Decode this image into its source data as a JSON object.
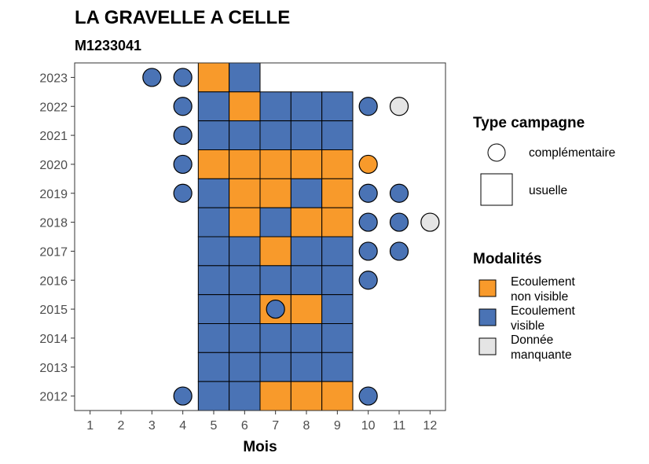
{
  "chart_data": {
    "type": "heatmap",
    "title": "LA GRAVELLE A CELLE",
    "subtitle": "M1233041",
    "xlabel": "Mois",
    "ylabel": "",
    "x_ticks": [
      "1",
      "2",
      "3",
      "4",
      "5",
      "6",
      "7",
      "8",
      "9",
      "10",
      "11",
      "12"
    ],
    "y_ticks": [
      "2012",
      "2013",
      "2014",
      "2015",
      "2016",
      "2017",
      "2018",
      "2019",
      "2020",
      "2021",
      "2022",
      "2023"
    ],
    "xlim": [
      0.5,
      12.5
    ],
    "ylim": [
      2011.5,
      2023.5
    ],
    "colors": {
      "Ecoulement non visible": "#F89A2B",
      "Ecoulement visible": "#4A73B5",
      "Donnée manquante": "#E5E5E5"
    },
    "legend_campaign": {
      "title": "Type campagne",
      "items": [
        {
          "shape": "circle",
          "label": "complémentaire"
        },
        {
          "shape": "square",
          "label": "usuelle"
        }
      ]
    },
    "legend_modalites": {
      "title": "Modalités",
      "items": [
        {
          "key": "Ecoulement non visible",
          "label_lines": [
            "Ecoulement",
            "non visible"
          ]
        },
        {
          "key": "Ecoulement visible",
          "label_lines": [
            "Ecoulement",
            "visible"
          ]
        },
        {
          "key": "Donnée manquante",
          "label_lines": [
            "Donnée",
            "manquante"
          ]
        }
      ]
    },
    "usuelle": [
      {
        "year": 2023,
        "month": 5,
        "value": "Ecoulement non visible"
      },
      {
        "year": 2023,
        "month": 6,
        "value": "Ecoulement visible"
      },
      {
        "year": 2022,
        "month": 5,
        "value": "Ecoulement visible"
      },
      {
        "year": 2022,
        "month": 6,
        "value": "Ecoulement non visible"
      },
      {
        "year": 2022,
        "month": 7,
        "value": "Ecoulement visible"
      },
      {
        "year": 2022,
        "month": 8,
        "value": "Ecoulement visible"
      },
      {
        "year": 2022,
        "month": 9,
        "value": "Ecoulement visible"
      },
      {
        "year": 2021,
        "month": 5,
        "value": "Ecoulement visible"
      },
      {
        "year": 2021,
        "month": 6,
        "value": "Ecoulement visible"
      },
      {
        "year": 2021,
        "month": 7,
        "value": "Ecoulement visible"
      },
      {
        "year": 2021,
        "month": 8,
        "value": "Ecoulement visible"
      },
      {
        "year": 2021,
        "month": 9,
        "value": "Ecoulement visible"
      },
      {
        "year": 2020,
        "month": 5,
        "value": "Ecoulement non visible"
      },
      {
        "year": 2020,
        "month": 6,
        "value": "Ecoulement non visible"
      },
      {
        "year": 2020,
        "month": 7,
        "value": "Ecoulement non visible"
      },
      {
        "year": 2020,
        "month": 8,
        "value": "Ecoulement non visible"
      },
      {
        "year": 2020,
        "month": 9,
        "value": "Ecoulement non visible"
      },
      {
        "year": 2019,
        "month": 5,
        "value": "Ecoulement visible"
      },
      {
        "year": 2019,
        "month": 6,
        "value": "Ecoulement non visible"
      },
      {
        "year": 2019,
        "month": 7,
        "value": "Ecoulement non visible"
      },
      {
        "year": 2019,
        "month": 8,
        "value": "Ecoulement visible"
      },
      {
        "year": 2019,
        "month": 9,
        "value": "Ecoulement non visible"
      },
      {
        "year": 2018,
        "month": 5,
        "value": "Ecoulement visible"
      },
      {
        "year": 2018,
        "month": 6,
        "value": "Ecoulement non visible"
      },
      {
        "year": 2018,
        "month": 7,
        "value": "Ecoulement visible"
      },
      {
        "year": 2018,
        "month": 8,
        "value": "Ecoulement non visible"
      },
      {
        "year": 2018,
        "month": 9,
        "value": "Ecoulement non visible"
      },
      {
        "year": 2017,
        "month": 5,
        "value": "Ecoulement visible"
      },
      {
        "year": 2017,
        "month": 6,
        "value": "Ecoulement visible"
      },
      {
        "year": 2017,
        "month": 7,
        "value": "Ecoulement non visible"
      },
      {
        "year": 2017,
        "month": 8,
        "value": "Ecoulement visible"
      },
      {
        "year": 2017,
        "month": 9,
        "value": "Ecoulement visible"
      },
      {
        "year": 2016,
        "month": 5,
        "value": "Ecoulement visible"
      },
      {
        "year": 2016,
        "month": 6,
        "value": "Ecoulement visible"
      },
      {
        "year": 2016,
        "month": 7,
        "value": "Ecoulement visible"
      },
      {
        "year": 2016,
        "month": 8,
        "value": "Ecoulement visible"
      },
      {
        "year": 2016,
        "month": 9,
        "value": "Ecoulement visible"
      },
      {
        "year": 2015,
        "month": 5,
        "value": "Ecoulement visible"
      },
      {
        "year": 2015,
        "month": 6,
        "value": "Ecoulement visible"
      },
      {
        "year": 2015,
        "month": 7,
        "value": "Ecoulement non visible"
      },
      {
        "year": 2015,
        "month": 8,
        "value": "Ecoulement non visible"
      },
      {
        "year": 2015,
        "month": 9,
        "value": "Ecoulement visible"
      },
      {
        "year": 2014,
        "month": 5,
        "value": "Ecoulement visible"
      },
      {
        "year": 2014,
        "month": 6,
        "value": "Ecoulement visible"
      },
      {
        "year": 2014,
        "month": 7,
        "value": "Ecoulement visible"
      },
      {
        "year": 2014,
        "month": 8,
        "value": "Ecoulement visible"
      },
      {
        "year": 2014,
        "month": 9,
        "value": "Ecoulement visible"
      },
      {
        "year": 2013,
        "month": 5,
        "value": "Ecoulement visible"
      },
      {
        "year": 2013,
        "month": 6,
        "value": "Ecoulement visible"
      },
      {
        "year": 2013,
        "month": 7,
        "value": "Ecoulement visible"
      },
      {
        "year": 2013,
        "month": 8,
        "value": "Ecoulement visible"
      },
      {
        "year": 2013,
        "month": 9,
        "value": "Ecoulement visible"
      },
      {
        "year": 2012,
        "month": 5,
        "value": "Ecoulement visible"
      },
      {
        "year": 2012,
        "month": 6,
        "value": "Ecoulement visible"
      },
      {
        "year": 2012,
        "month": 7,
        "value": "Ecoulement non visible"
      },
      {
        "year": 2012,
        "month": 8,
        "value": "Ecoulement non visible"
      },
      {
        "year": 2012,
        "month": 9,
        "value": "Ecoulement non visible"
      }
    ],
    "complementaire": [
      {
        "year": 2023,
        "month": 3,
        "value": "Ecoulement visible"
      },
      {
        "year": 2023,
        "month": 4,
        "value": "Ecoulement visible"
      },
      {
        "year": 2022,
        "month": 4,
        "value": "Ecoulement visible"
      },
      {
        "year": 2022,
        "month": 10,
        "value": "Ecoulement visible"
      },
      {
        "year": 2022,
        "month": 11,
        "value": "Donnée manquante"
      },
      {
        "year": 2021,
        "month": 4,
        "value": "Ecoulement visible"
      },
      {
        "year": 2020,
        "month": 4,
        "value": "Ecoulement visible"
      },
      {
        "year": 2020,
        "month": 10,
        "value": "Ecoulement non visible"
      },
      {
        "year": 2019,
        "month": 4,
        "value": "Ecoulement visible"
      },
      {
        "year": 2019,
        "month": 10,
        "value": "Ecoulement visible"
      },
      {
        "year": 2019,
        "month": 11,
        "value": "Ecoulement visible"
      },
      {
        "year": 2018,
        "month": 10,
        "value": "Ecoulement visible"
      },
      {
        "year": 2018,
        "month": 11,
        "value": "Ecoulement visible"
      },
      {
        "year": 2018,
        "month": 12,
        "value": "Donnée manquante"
      },
      {
        "year": 2017,
        "month": 10,
        "value": "Ecoulement visible"
      },
      {
        "year": 2017,
        "month": 11,
        "value": "Ecoulement visible"
      },
      {
        "year": 2016,
        "month": 10,
        "value": "Ecoulement visible"
      },
      {
        "year": 2015,
        "month": 7,
        "value": "Ecoulement visible"
      },
      {
        "year": 2012,
        "month": 4,
        "value": "Ecoulement visible"
      },
      {
        "year": 2012,
        "month": 10,
        "value": "Ecoulement visible"
      }
    ]
  }
}
